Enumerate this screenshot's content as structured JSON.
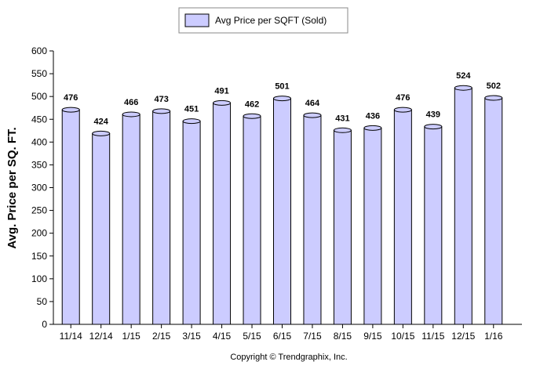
{
  "chart_data": {
    "type": "bar",
    "title": "",
    "xlabel": "",
    "ylabel": "Avg. Price per SQ. FT.",
    "legend": {
      "position": "top-center",
      "entries": [
        "Avg Price per SQFT (Sold)"
      ]
    },
    "categories": [
      "11/14",
      "12/14",
      "1/15",
      "2/15",
      "3/15",
      "4/15",
      "5/15",
      "6/15",
      "7/15",
      "8/15",
      "9/15",
      "10/15",
      "11/15",
      "12/15",
      "1/16"
    ],
    "series": [
      {
        "name": "Avg Price per SQFT (Sold)",
        "values": [
          476,
          424,
          466,
          473,
          451,
          491,
          462,
          501,
          464,
          431,
          436,
          476,
          439,
          524,
          502
        ],
        "color": "#ccccff",
        "border_color": "#000000"
      }
    ],
    "ylim": [
      0,
      600
    ],
    "yticks": [
      0,
      50,
      100,
      150,
      200,
      250,
      300,
      350,
      400,
      450,
      500,
      550,
      600
    ],
    "data_labels": true,
    "grid": false,
    "copyright": "Copyright © Trendgraphix, Inc."
  }
}
